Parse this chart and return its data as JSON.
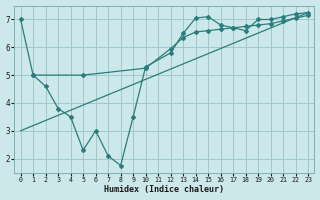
{
  "bg_color": "#cce8ea",
  "grid_color": "#a0c8cc",
  "line_color": "#2a7d7b",
  "xlabel": "Humidex (Indice chaleur)",
  "xlim": [
    -0.5,
    23.5
  ],
  "ylim": [
    1.5,
    7.5
  ],
  "yticks": [
    2,
    3,
    4,
    5,
    6,
    7
  ],
  "xticks": [
    0,
    1,
    2,
    3,
    4,
    5,
    6,
    7,
    8,
    9,
    10,
    11,
    12,
    13,
    14,
    15,
    16,
    17,
    18,
    19,
    20,
    21,
    22,
    23
  ],
  "line1_x": [
    0,
    1,
    2,
    3,
    4,
    5,
    6,
    7,
    8,
    9,
    10,
    12,
    13,
    14,
    15,
    16,
    17,
    18,
    19,
    20,
    21,
    22,
    23
  ],
  "line1_y": [
    7.0,
    5.0,
    4.6,
    3.8,
    3.5,
    2.3,
    3.0,
    2.1,
    1.75,
    3.5,
    5.3,
    5.8,
    6.5,
    7.05,
    7.1,
    6.8,
    6.7,
    6.6,
    7.0,
    7.0,
    7.1,
    7.2,
    7.25
  ],
  "line2_x": [
    1,
    5,
    10,
    12,
    13,
    14,
    15,
    16,
    17,
    18,
    19,
    20,
    21,
    22,
    23
  ],
  "line2_y": [
    5.0,
    5.0,
    5.25,
    5.95,
    6.35,
    6.55,
    6.6,
    6.65,
    6.7,
    6.75,
    6.8,
    6.85,
    6.95,
    7.05,
    7.15
  ],
  "line3_x": [
    0,
    23
  ],
  "line3_y": [
    3.0,
    7.25
  ]
}
